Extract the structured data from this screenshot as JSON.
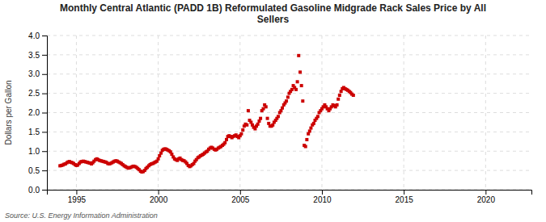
{
  "chart_data": {
    "type": "scatter",
    "title": "Monthly Central Atlantic (PADD 1B) Reformulated Gasoline Midgrade Rack Sales Price by All\nSellers",
    "y_label": "Dollars per Gallon",
    "annotations": [
      "Source: U.S. Energy Information Administration"
    ],
    "color": "#cc0000",
    "marker": "square",
    "grid": true,
    "xlim": [
      1993.2,
      2022.8
    ],
    "xticks": [
      1995,
      2000,
      2005,
      2010,
      2015,
      2020
    ],
    "ylim": [
      0.0,
      4.0
    ],
    "yticks": [
      {
        "value": 0.0,
        "label": "0.0"
      },
      0.5,
      {
        "value": 1.0,
        "label": "1.0"
      },
      1.5,
      {
        "value": 2.0,
        "label": "2.0"
      },
      2.5,
      {
        "value": 3.0,
        "label": "3.0"
      },
      3.5,
      {
        "value": 4.0,
        "label": "4.0"
      }
    ],
    "x": [
      1994.0,
      1994.08,
      1994.17,
      1994.25,
      1994.33,
      1994.42,
      1994.5,
      1994.58,
      1994.67,
      1994.75,
      1994.83,
      1994.92,
      1995.0,
      1995.08,
      1995.17,
      1995.25,
      1995.33,
      1995.42,
      1995.5,
      1995.58,
      1995.67,
      1995.75,
      1995.83,
      1995.92,
      1996.0,
      1996.08,
      1996.17,
      1996.25,
      1996.33,
      1996.42,
      1996.5,
      1996.58,
      1996.67,
      1996.75,
      1996.83,
      1996.92,
      1997.0,
      1997.08,
      1997.17,
      1997.25,
      1997.33,
      1997.42,
      1997.5,
      1997.58,
      1997.67,
      1997.75,
      1997.83,
      1997.92,
      1998.0,
      1998.08,
      1998.17,
      1998.25,
      1998.33,
      1998.42,
      1998.5,
      1998.58,
      1998.67,
      1998.75,
      1998.83,
      1998.92,
      1999.0,
      1999.08,
      1999.17,
      1999.25,
      1999.33,
      1999.42,
      1999.5,
      1999.58,
      1999.67,
      1999.75,
      1999.83,
      1999.92,
      2000.0,
      2000.08,
      2000.17,
      2000.25,
      2000.33,
      2000.42,
      2000.5,
      2000.58,
      2000.67,
      2000.75,
      2000.83,
      2000.92,
      2001.0,
      2001.08,
      2001.17,
      2001.25,
      2001.33,
      2001.42,
      2001.5,
      2001.58,
      2001.67,
      2001.75,
      2001.83,
      2001.92,
      2002.0,
      2002.08,
      2002.17,
      2002.25,
      2002.33,
      2002.42,
      2002.5,
      2002.58,
      2002.67,
      2002.75,
      2002.83,
      2002.92,
      2003.0,
      2003.08,
      2003.17,
      2003.25,
      2003.33,
      2003.42,
      2003.5,
      2003.58,
      2003.67,
      2003.75,
      2003.83,
      2003.92,
      2004.0,
      2004.08,
      2004.17,
      2004.25,
      2004.33,
      2004.42,
      2004.5,
      2004.58,
      2004.67,
      2004.75,
      2004.83,
      2004.92,
      2005.0,
      2005.08,
      2005.17,
      2005.25,
      2005.33,
      2005.42,
      2005.5,
      2005.58,
      2005.67,
      2005.75,
      2005.83,
      2005.92,
      2006.0,
      2006.08,
      2006.17,
      2006.25,
      2006.33,
      2006.42,
      2006.5,
      2006.58,
      2006.67,
      2006.75,
      2006.83,
      2006.92,
      2007.0,
      2007.08,
      2007.17,
      2007.25,
      2007.33,
      2007.42,
      2007.5,
      2007.58,
      2007.67,
      2007.75,
      2007.83,
      2007.92,
      2008.0,
      2008.08,
      2008.17,
      2008.25,
      2008.33,
      2008.42,
      2008.5,
      2008.58,
      2008.67,
      2008.75,
      2008.83,
      2008.92,
      2009.0,
      2009.08,
      2009.17,
      2009.25,
      2009.33,
      2009.42,
      2009.5,
      2009.58,
      2009.67,
      2009.75,
      2009.83,
      2009.92,
      2010.0,
      2010.08,
      2010.17,
      2010.25,
      2010.33,
      2010.42,
      2010.5,
      2010.58,
      2010.67,
      2010.75,
      2010.83,
      2010.92,
      2011.0,
      2011.08,
      2011.17,
      2011.25,
      2011.33,
      2011.42,
      2011.5,
      2011.58,
      2011.67,
      2011.75,
      2011.83,
      2011.92
    ],
    "values": [
      0.62,
      0.63,
      0.64,
      0.66,
      0.67,
      0.7,
      0.72,
      0.73,
      0.71,
      0.7,
      0.68,
      0.65,
      0.63,
      0.64,
      0.68,
      0.72,
      0.73,
      0.74,
      0.73,
      0.72,
      0.71,
      0.7,
      0.69,
      0.67,
      0.7,
      0.74,
      0.78,
      0.8,
      0.78,
      0.76,
      0.75,
      0.74,
      0.73,
      0.72,
      0.71,
      0.68,
      0.67,
      0.68,
      0.7,
      0.72,
      0.74,
      0.75,
      0.74,
      0.72,
      0.7,
      0.68,
      0.65,
      0.62,
      0.6,
      0.58,
      0.56,
      0.57,
      0.58,
      0.6,
      0.61,
      0.6,
      0.58,
      0.55,
      0.52,
      0.48,
      0.46,
      0.47,
      0.5,
      0.55,
      0.58,
      0.62,
      0.65,
      0.67,
      0.68,
      0.7,
      0.72,
      0.74,
      0.8,
      0.88,
      0.95,
      1.02,
      1.05,
      1.06,
      1.05,
      1.03,
      1.01,
      0.98,
      0.92,
      0.85,
      0.8,
      0.78,
      0.76,
      0.8,
      0.82,
      0.78,
      0.76,
      0.75,
      0.72,
      0.68,
      0.63,
      0.6,
      0.62,
      0.65,
      0.68,
      0.74,
      0.78,
      0.83,
      0.85,
      0.88,
      0.9,
      0.92,
      0.95,
      0.98,
      1.0,
      1.05,
      1.08,
      1.1,
      1.08,
      1.05,
      1.03,
      1.05,
      1.08,
      1.1,
      1.12,
      1.15,
      1.18,
      1.22,
      1.3,
      1.38,
      1.4,
      1.38,
      1.35,
      1.38,
      1.4,
      1.42,
      1.38,
      1.35,
      1.4,
      1.45,
      1.55,
      1.65,
      1.7,
      1.68,
      2.05,
      1.8,
      1.75,
      1.68,
      1.62,
      1.58,
      1.65,
      1.7,
      1.78,
      1.85,
      2.05,
      2.1,
      2.2,
      2.15,
      1.85,
      1.72,
      1.65,
      1.65,
      1.68,
      1.75,
      1.8,
      1.85,
      1.9,
      2.0,
      2.05,
      2.12,
      2.2,
      2.25,
      2.3,
      2.4,
      2.5,
      2.55,
      2.6,
      2.7,
      2.65,
      2.6,
      2.8,
      3.48,
      3.05,
      2.7,
      2.3,
      1.15,
      1.12,
      1.3,
      1.45,
      1.52,
      1.6,
      1.68,
      1.72,
      1.8,
      1.85,
      1.9,
      2.0,
      2.05,
      2.1,
      2.15,
      2.2,
      2.15,
      2.1,
      2.05,
      2.1,
      2.15,
      2.2,
      2.18,
      2.15,
      2.2,
      2.35,
      2.45,
      2.55,
      2.62,
      2.65,
      2.62,
      2.6,
      2.58,
      2.55,
      2.52,
      2.48,
      2.45
    ]
  }
}
